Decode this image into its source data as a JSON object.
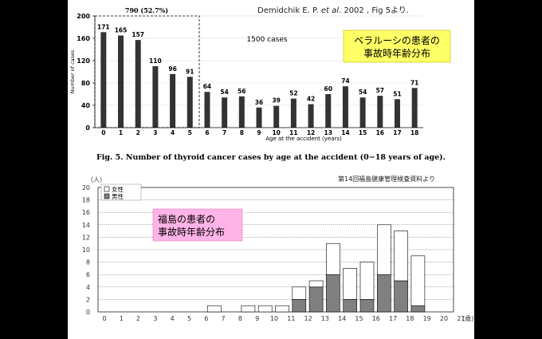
{
  "citation": {
    "prefix": "Demidchik E. P. ",
    "italic": "et al.",
    "suffix": " 2002 , Fig 5より."
  },
  "callouts": {
    "belarus": {
      "line1": "ベラルーシの患者の",
      "line2": "事故時年齢分布",
      "bg": "#ffff66"
    },
    "fukushima": {
      "line1": "福島の患者の",
      "line2": "事故時年齢分布",
      "bg": "#ffb3e6"
    }
  },
  "chart_data": [
    {
      "type": "bar",
      "title": "Fig. 5. Number of thyroid cancer cases by age at the accident (0−18 years of age).",
      "xlabel": "Age at the accident (years)",
      "ylabel": "Number of cases",
      "ylim": [
        0,
        200
      ],
      "yticks": [
        0,
        40,
        80,
        120,
        160,
        200
      ],
      "categories": [
        "0",
        "1",
        "2",
        "3",
        "4",
        "5",
        "6",
        "7",
        "8",
        "9",
        "10",
        "11",
        "12",
        "13",
        "14",
        "15",
        "16",
        "17",
        "18"
      ],
      "values": [
        171,
        165,
        157,
        110,
        96,
        91,
        64,
        54,
        56,
        36,
        39,
        52,
        42,
        60,
        74,
        54,
        57,
        51,
        71
      ],
      "annotations": {
        "group_label": "790 (52.7%)",
        "total": "1500 cases"
      },
      "bar_color": "#333333"
    },
    {
      "type": "bar",
      "stacked": true,
      "source": "第14回福島健康管理検査資料より",
      "yunit": "（人）",
      "xunit": "(歳)",
      "ylim": [
        0,
        20
      ],
      "yticks": [
        0,
        2,
        4,
        6,
        8,
        10,
        12,
        14,
        16,
        18,
        20
      ],
      "categories": [
        "0",
        "1",
        "2",
        "3",
        "4",
        "5",
        "6",
        "7",
        "8",
        "9",
        "10",
        "11",
        "12",
        "13",
        "14",
        "15",
        "16",
        "17",
        "18",
        "19",
        "20",
        "21"
      ],
      "series": [
        {
          "name": "男性",
          "color": "#808080",
          "values": [
            0,
            0,
            0,
            0,
            0,
            0,
            0,
            0,
            0,
            0,
            0,
            2,
            4,
            6,
            2,
            2,
            6,
            5,
            1,
            0,
            0,
            0
          ]
        },
        {
          "name": "女性",
          "color": "#ffffff",
          "values": [
            0,
            0,
            0,
            0,
            0,
            0,
            1,
            0,
            1,
            1,
            1,
            2,
            1,
            5,
            5,
            6,
            8,
            8,
            8,
            0,
            0,
            0
          ]
        }
      ],
      "legend": {
        "female": "女性",
        "male": "男性"
      }
    }
  ]
}
